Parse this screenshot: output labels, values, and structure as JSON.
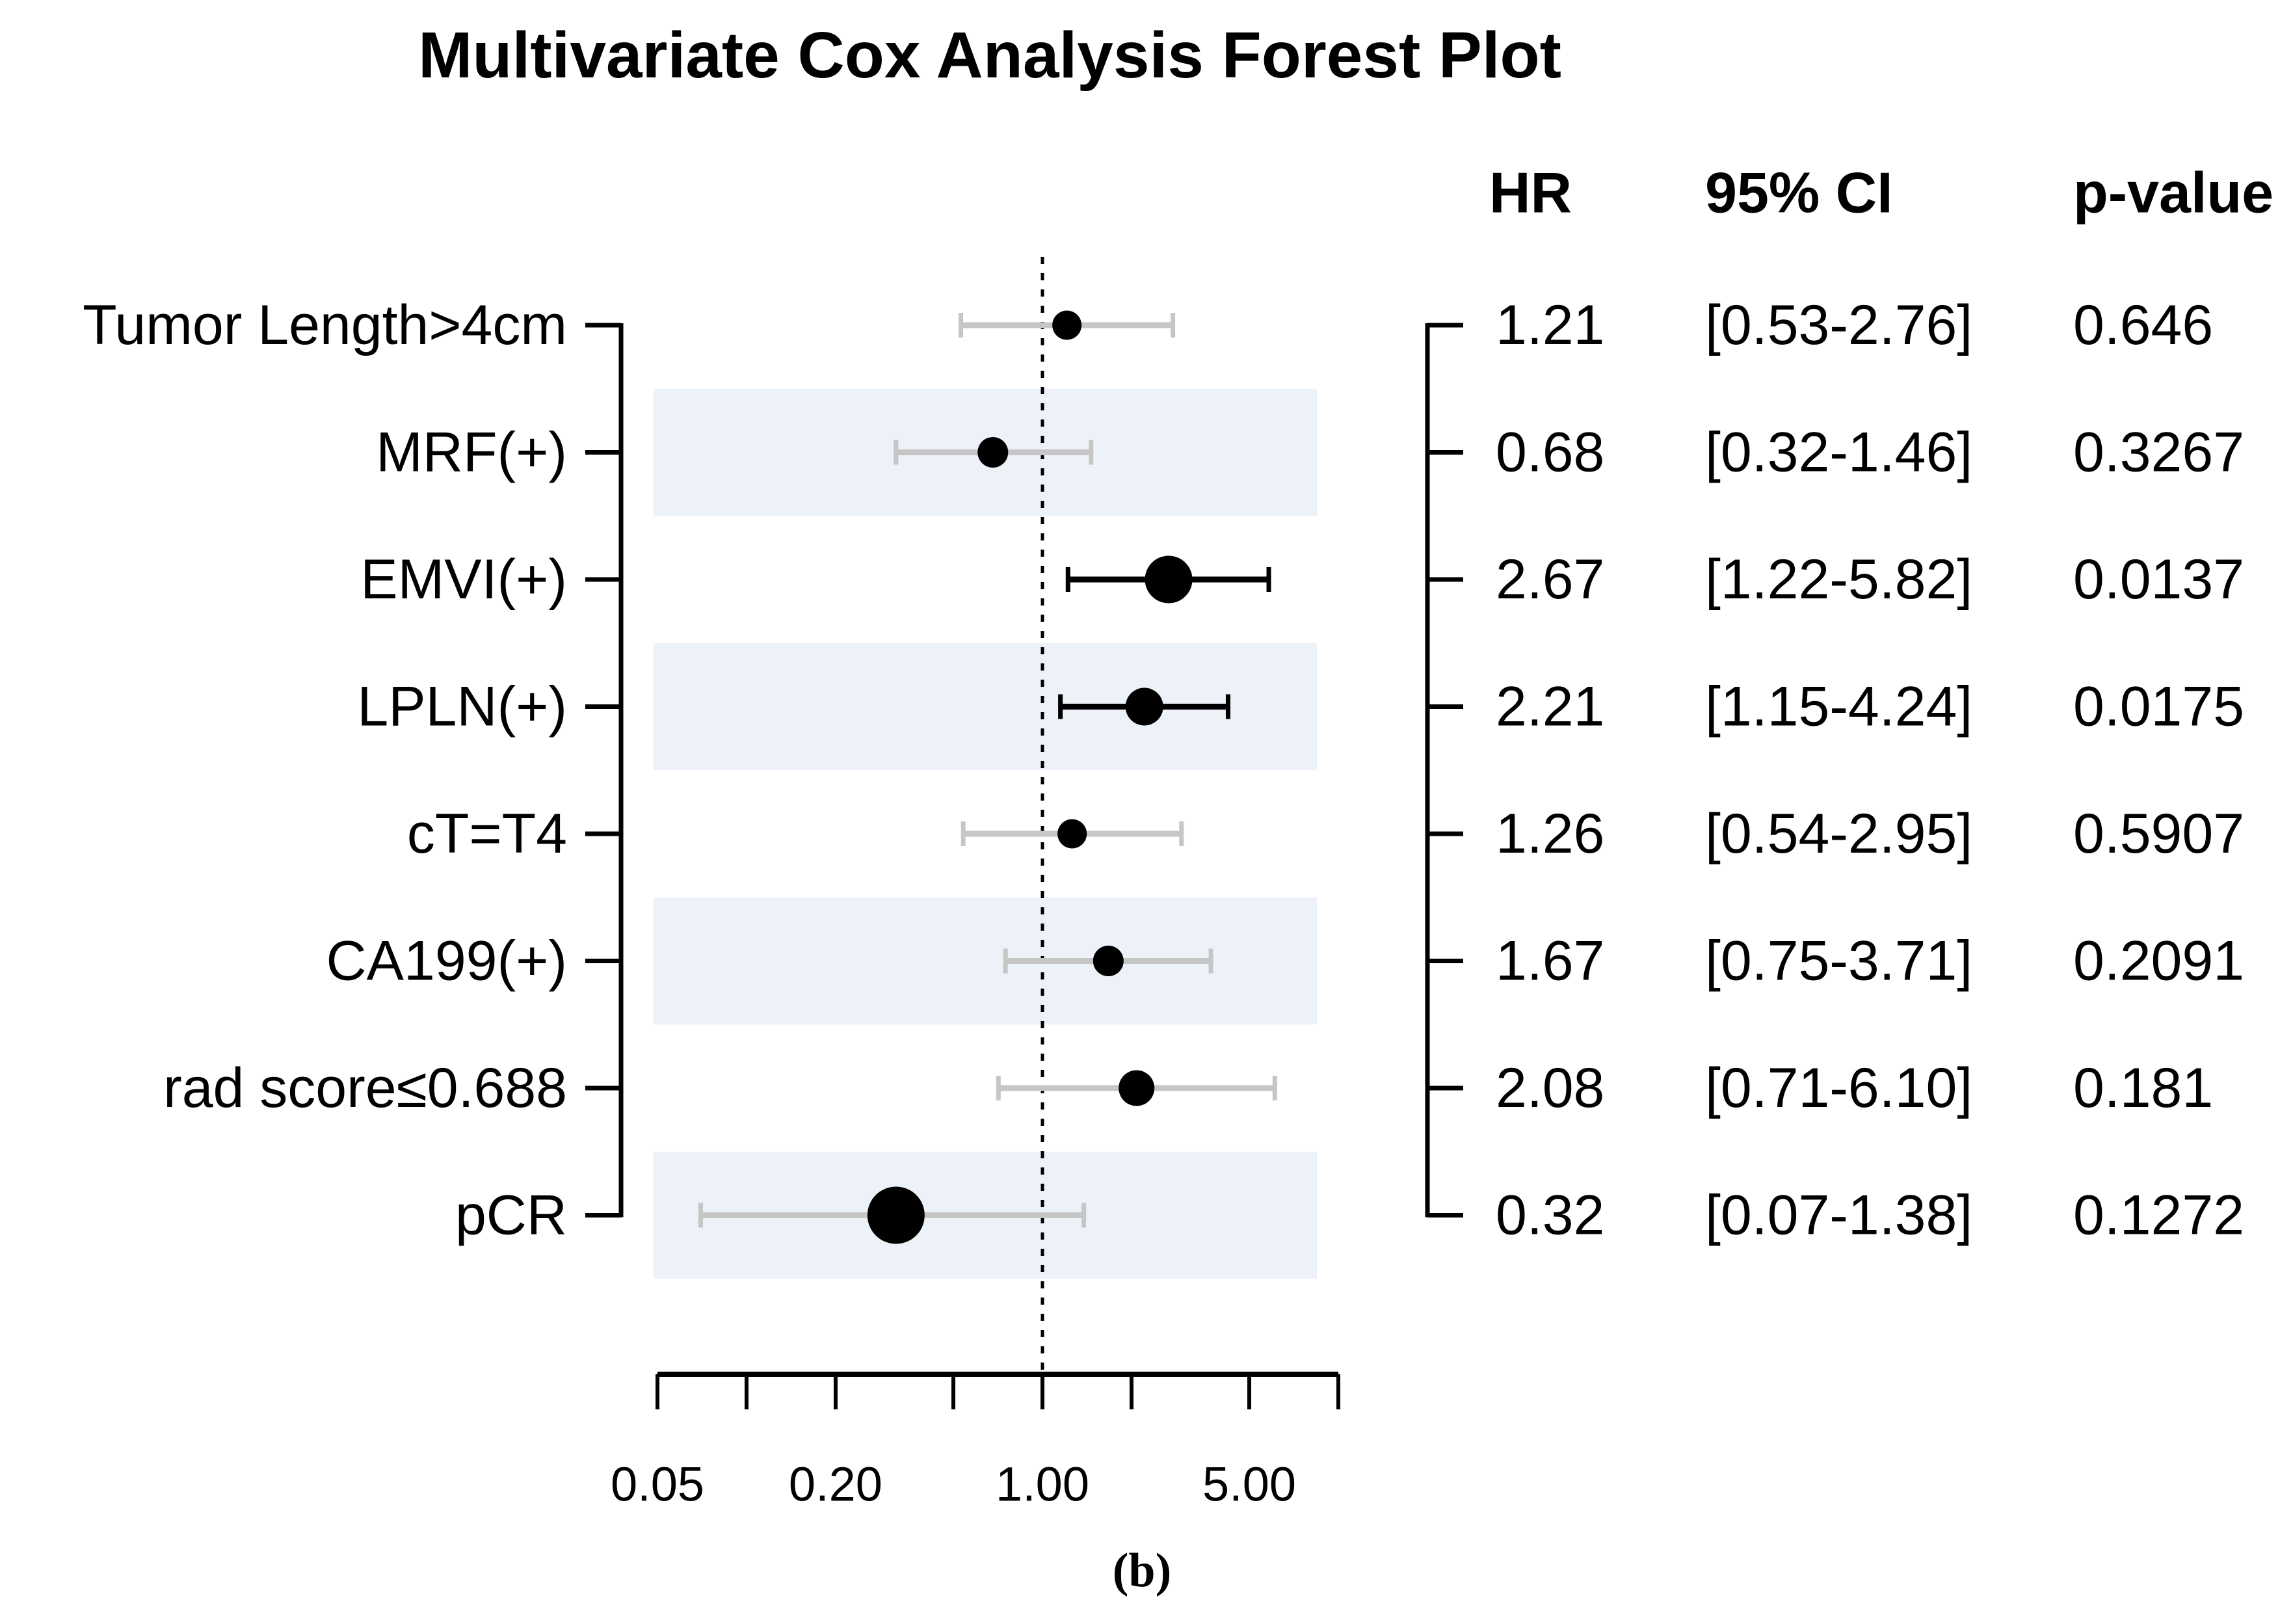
{
  "chart_data": {
    "type": "scatter",
    "subtype": "forest-plot",
    "title": "Multivariate Cox Analysis Forest Plot",
    "caption": "(b)",
    "columns": {
      "hr": "HR",
      "ci": "95% CI",
      "p": "p-value"
    },
    "x_axis": {
      "scale": "log",
      "min": 0.05,
      "max": 10,
      "tick_values": [
        0.05,
        0.1,
        0.2,
        0.5,
        1,
        2,
        5,
        10
      ],
      "tick_labels": [
        "0.05",
        "0.20",
        "1.00",
        "5.00"
      ],
      "tick_label_values": [
        0.05,
        0.2,
        1,
        5
      ],
      "reference_line": 1.0,
      "grid": false
    },
    "colors": {
      "dot": "#000000",
      "significant_bar": "#000000",
      "nonsignificant_bar": "#c6c6c6",
      "band": "#edf2f9",
      "bracket": "#000000",
      "reference_line": "#000000"
    },
    "legend_position": "none",
    "rows": [
      {
        "label": "Tumor Length>4cm",
        "hr": 1.21,
        "ci_low": 0.53,
        "ci_high": 2.76,
        "hr_text": "1.21",
        "ci_text": "[0.53-2.76]",
        "p_text": "0.646",
        "significant": false,
        "shaded": false,
        "dot_diameter": 45
      },
      {
        "label": "MRF(+)",
        "hr": 0.68,
        "ci_low": 0.32,
        "ci_high": 1.46,
        "hr_text": "0.68",
        "ci_text": "[0.32-1.46]",
        "p_text": "0.3267",
        "significant": false,
        "shaded": true,
        "dot_diameter": 47
      },
      {
        "label": "EMVI(+)",
        "hr": 2.67,
        "ci_low": 1.22,
        "ci_high": 5.82,
        "hr_text": "2.67",
        "ci_text": "[1.22-5.82]",
        "p_text": "0.0137",
        "significant": true,
        "shaded": false,
        "dot_diameter": 73
      },
      {
        "label": "LPLN(+)",
        "hr": 2.21,
        "ci_low": 1.15,
        "ci_high": 4.24,
        "hr_text": "2.21",
        "ci_text": "[1.15-4.24]",
        "p_text": "0.0175",
        "significant": true,
        "shaded": true,
        "dot_diameter": 58
      },
      {
        "label": "cT=T4",
        "hr": 1.26,
        "ci_low": 0.54,
        "ci_high": 2.95,
        "hr_text": "1.26",
        "ci_text": "[0.54-2.95]",
        "p_text": "0.5907",
        "significant": false,
        "shaded": false,
        "dot_diameter": 45
      },
      {
        "label": "CA199(+)",
        "hr": 1.67,
        "ci_low": 0.75,
        "ci_high": 3.71,
        "hr_text": "1.67",
        "ci_text": "[0.75-3.71]",
        "p_text": "0.2091",
        "significant": false,
        "shaded": true,
        "dot_diameter": 47
      },
      {
        "label": "rad score≤0.688",
        "hr": 2.08,
        "ci_low": 0.71,
        "ci_high": 6.1,
        "hr_text": "2.08",
        "ci_text": "[0.71-6.10]",
        "p_text": "0.181",
        "significant": false,
        "shaded": false,
        "dot_diameter": 55
      },
      {
        "label": "pCR",
        "hr": 0.32,
        "ci_low": 0.07,
        "ci_high": 1.38,
        "hr_text": "0.32",
        "ci_text": "[0.07-1.38]",
        "p_text": "0.1272",
        "significant": false,
        "shaded": true,
        "dot_diameter": 88
      }
    ]
  }
}
